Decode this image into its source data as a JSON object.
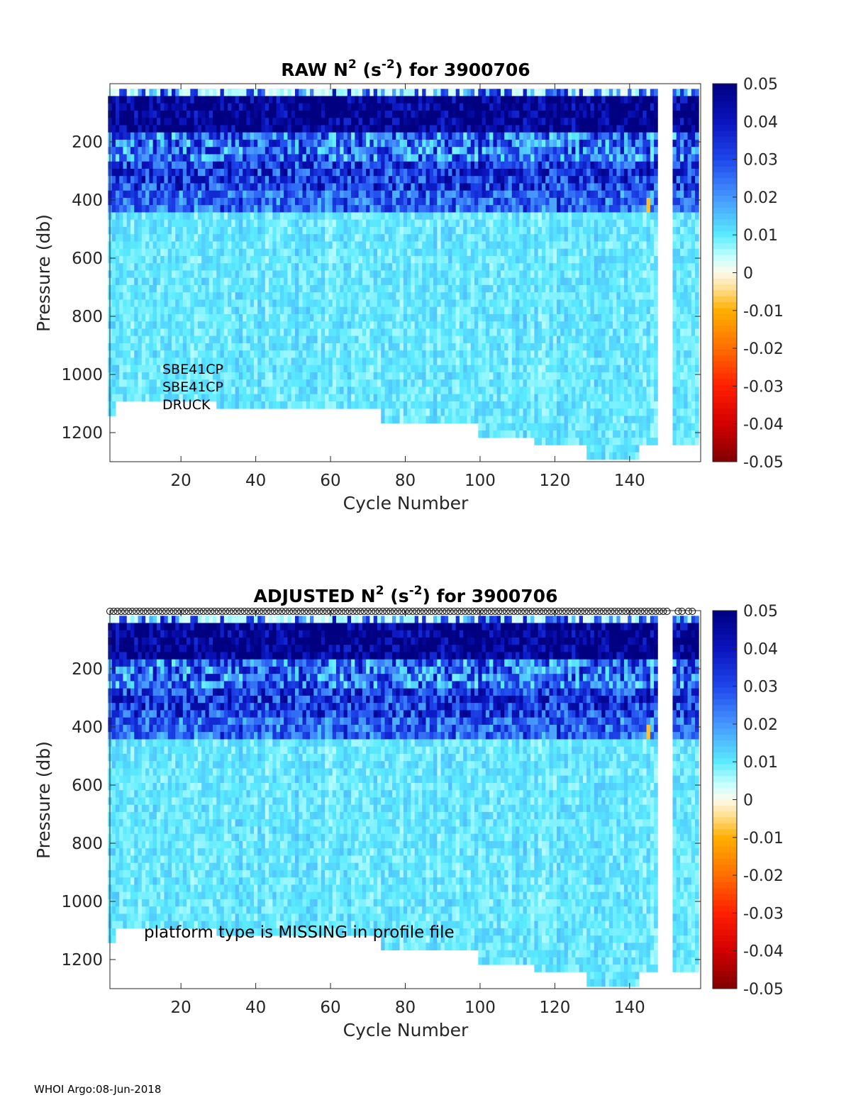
{
  "footer": "WHOI Argo:08-Jun-2018",
  "chart_data": [
    {
      "type": "heatmap",
      "name": "raw",
      "title_prefix": "RAW N",
      "title_sup": "2",
      "title_unit_open": " (s",
      "title_unit_sup": "-2",
      "title_suffix": ") for 3900706",
      "xlabel": "Cycle Number",
      "ylabel": "Pressure (db)",
      "xlim": [
        1,
        159
      ],
      "ylim": [
        0,
        1300
      ],
      "y_reversed": true,
      "xticks": [
        20,
        40,
        60,
        80,
        100,
        120,
        140
      ],
      "yticks": [
        200,
        400,
        600,
        800,
        1000,
        1200
      ],
      "colorbar": {
        "ticks": [
          "0.05",
          "0.04",
          "0.03",
          "0.02",
          "0.01",
          "0",
          "-0.01",
          "-0.02",
          "-0.03",
          "-0.04",
          "-0.05"
        ],
        "range": [
          -0.05,
          0.05
        ]
      },
      "annotations": [
        "SBE41CP",
        "SBE41CP",
        "DRUCK"
      ],
      "qc_markers": false
    },
    {
      "type": "heatmap",
      "name": "adjusted",
      "title_prefix": "ADJUSTED N",
      "title_sup": "2",
      "title_unit_open": " (s",
      "title_unit_sup": "-2",
      "title_suffix": ") for 3900706",
      "xlabel": "Cycle Number",
      "ylabel": "Pressure (db)",
      "xlim": [
        1,
        159
      ],
      "ylim": [
        0,
        1300
      ],
      "y_reversed": true,
      "xticks": [
        20,
        40,
        60,
        80,
        100,
        120,
        140
      ],
      "yticks": [
        200,
        400,
        600,
        800,
        1000,
        1200
      ],
      "colorbar": {
        "ticks": [
          "0.05",
          "0.04",
          "0.03",
          "0.02",
          "0.01",
          "0",
          "-0.01",
          "-0.02",
          "-0.03",
          "-0.04",
          "-0.05"
        ],
        "range": [
          -0.05,
          0.05
        ]
      },
      "annotations": [
        "platform type is MISSING in profile file"
      ],
      "qc_markers": true
    }
  ]
}
